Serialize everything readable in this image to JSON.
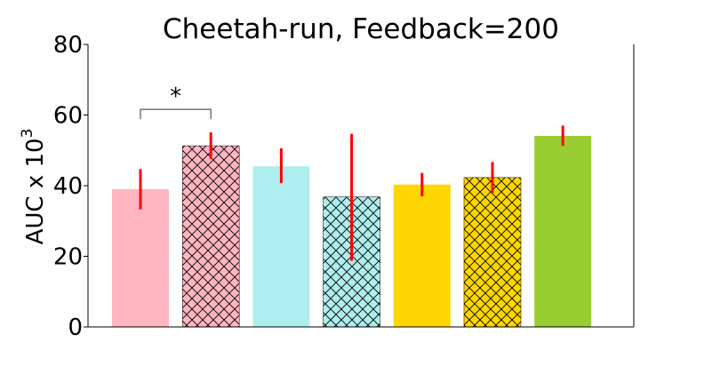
{
  "chart_data": {
    "type": "bar",
    "title": "Cheetah-run, Feedback=200",
    "xlabel": "",
    "ylabel": "AUC x 10",
    "ylabel_exponent": "3",
    "ylim": [
      0,
      80
    ],
    "yticks": [
      0,
      20,
      40,
      60,
      80
    ],
    "grid": false,
    "categories": [
      "",
      "",
      "",
      "",
      "",
      "",
      ""
    ],
    "values": [
      39.0,
      51.3,
      45.5,
      36.8,
      40.3,
      42.3,
      54.1
    ],
    "error_low": [
      33.3,
      47.6,
      40.7,
      18.7,
      37.0,
      38.0,
      51.3
    ],
    "error_high": [
      44.7,
      55.1,
      50.6,
      54.7,
      43.6,
      46.7,
      57.0
    ],
    "colors": [
      "#ffb6c1",
      "#ffb6c1",
      "#afeeee",
      "#afeeee",
      "#ffd700",
      "#ffd700",
      "#9acd32"
    ],
    "hatched": [
      false,
      true,
      false,
      true,
      false,
      true,
      false
    ],
    "error_color": "#ff0000",
    "significance": [
      {
        "from_index": 0,
        "to_index": 1,
        "label": "*"
      }
    ]
  }
}
